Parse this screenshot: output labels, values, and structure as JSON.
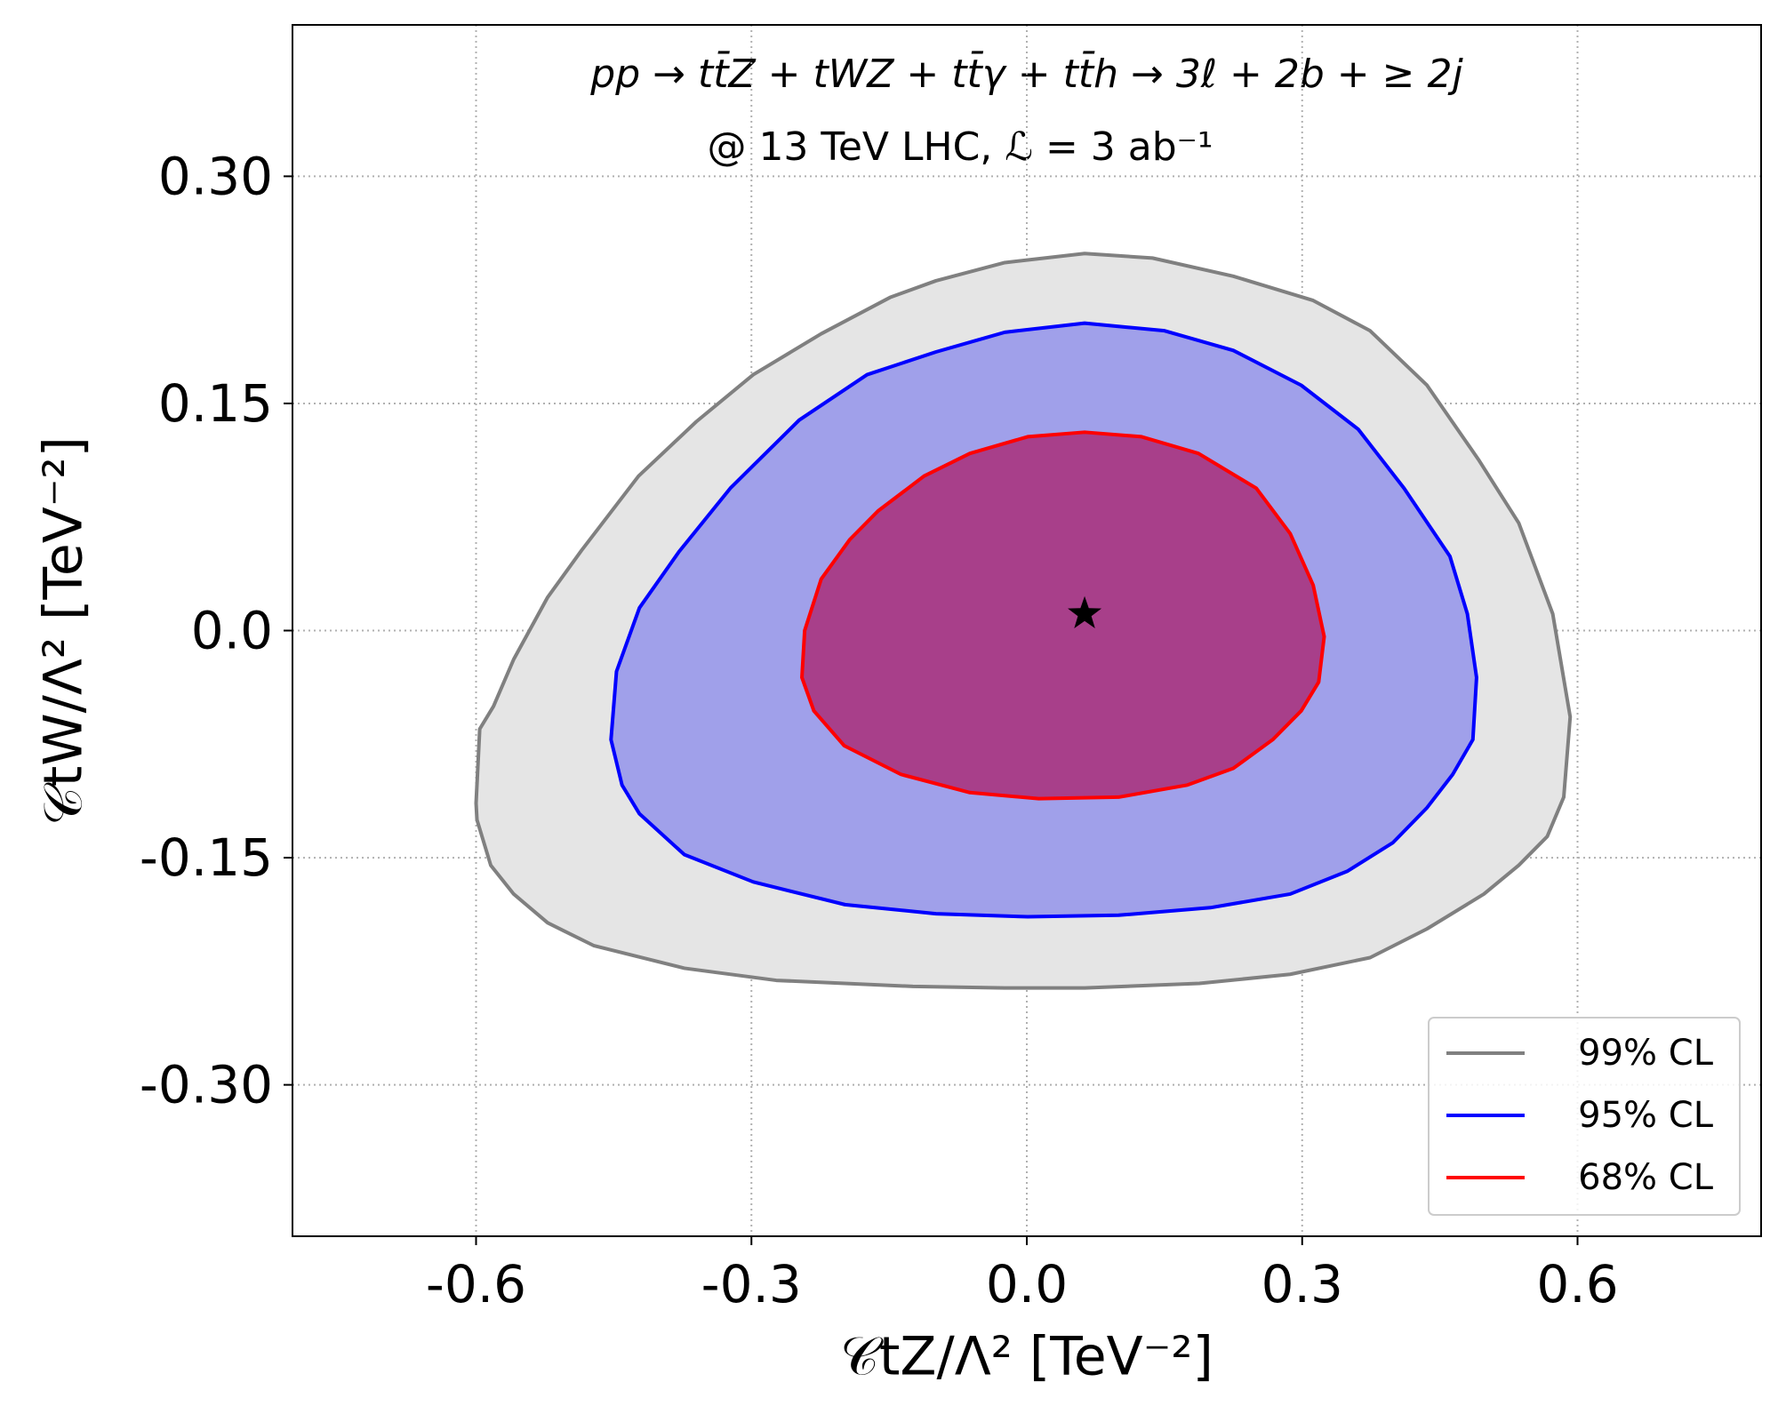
{
  "chart_data": {
    "type": "contour",
    "title": "pp → tt̄Z + tWZ + tt̄γ + tt̄h → 3ℓ + 2b + ≥ 2j",
    "subtitle": "@ 13 TeV LHC, ℒ = 3 ab⁻¹",
    "x_label": "𝒞tZ/Λ² [TeV⁻²]",
    "y_label": "𝒞tW/Λ² [TeV⁻²]",
    "xlim": [
      -0.8,
      0.8
    ],
    "ylim": [
      -0.4,
      0.4
    ],
    "xticks": [
      -0.6,
      -0.3,
      {
        "value": 0,
        "label": "0.0"
      },
      0.3,
      0.6
    ],
    "yticks": [
      {
        "value": -0.3,
        "label": "-0.30"
      },
      -0.15,
      {
        "value": 0,
        "label": "0.0"
      },
      0.15,
      {
        "value": 0.3,
        "label": "0.30"
      }
    ],
    "grid": true,
    "legend": "lower right",
    "series": [
      {
        "name": "99% CL",
        "color": "#808080",
        "fill": "#e5e5e5",
        "x": [
          -0.6,
          -0.596,
          -0.581,
          -0.559,
          -0.522,
          -0.485,
          -0.423,
          -0.36,
          -0.298,
          -0.224,
          -0.149,
          -0.099,
          -0.024,
          0.063,
          0.137,
          0.225,
          0.312,
          0.374,
          0.436,
          0.492,
          0.536,
          0.573,
          0.592,
          0.585,
          0.567,
          0.536,
          0.498,
          0.436,
          0.374,
          0.287,
          0.188,
          0.063,
          -0.024,
          -0.124,
          -0.273,
          -0.373,
          -0.472,
          -0.522,
          -0.559,
          -0.584,
          -0.599
        ],
        "y": [
          -0.114,
          -0.065,
          -0.05,
          -0.019,
          0.022,
          0.053,
          0.102,
          0.138,
          0.169,
          0.196,
          0.22,
          0.231,
          0.243,
          0.249,
          0.246,
          0.234,
          0.218,
          0.198,
          0.162,
          0.113,
          0.071,
          0.011,
          -0.057,
          -0.11,
          -0.136,
          -0.155,
          -0.174,
          -0.197,
          -0.216,
          -0.227,
          -0.233,
          -0.236,
          -0.236,
          -0.235,
          -0.231,
          -0.223,
          -0.208,
          -0.193,
          -0.174,
          -0.155,
          -0.125
        ]
      },
      {
        "name": "95% CL",
        "color": "#0000ff",
        "fill": "#a0a0ea",
        "x": [
          -0.453,
          -0.447,
          -0.422,
          -0.379,
          -0.323,
          -0.248,
          -0.174,
          -0.099,
          -0.024,
          0.063,
          0.15,
          0.225,
          0.299,
          0.361,
          0.411,
          0.461,
          0.48,
          0.49,
          0.486,
          0.464,
          0.436,
          0.399,
          0.349,
          0.287,
          0.2,
          0.1,
          0.001,
          -0.099,
          -0.198,
          -0.298,
          -0.373,
          -0.422,
          -0.441
        ],
        "y": [
          -0.072,
          -0.027,
          0.015,
          0.052,
          0.094,
          0.139,
          0.169,
          0.184,
          0.197,
          0.203,
          0.198,
          0.185,
          0.162,
          0.133,
          0.094,
          0.049,
          0.011,
          -0.031,
          -0.072,
          -0.095,
          -0.117,
          -0.14,
          -0.159,
          -0.174,
          -0.183,
          -0.188,
          -0.189,
          -0.187,
          -0.181,
          -0.166,
          -0.148,
          -0.121,
          -0.102
        ]
      },
      {
        "name": "68% CL",
        "color": "#ff0000",
        "fill": "#a83f8a",
        "x": [
          -0.245,
          -0.242,
          -0.224,
          -0.193,
          -0.162,
          -0.112,
          -0.062,
          0.001,
          0.063,
          0.125,
          0.187,
          0.25,
          0.287,
          0.312,
          0.324,
          0.318,
          0.299,
          0.268,
          0.225,
          0.175,
          0.1,
          0.013,
          -0.062,
          -0.137,
          -0.199,
          -0.232
        ],
        "y": [
          -0.031,
          0.0,
          0.034,
          0.06,
          0.079,
          0.102,
          0.117,
          0.128,
          0.131,
          0.128,
          0.117,
          0.094,
          0.064,
          0.03,
          -0.004,
          -0.034,
          -0.053,
          -0.072,
          -0.091,
          -0.102,
          -0.11,
          -0.111,
          -0.107,
          -0.095,
          -0.076,
          -0.053
        ]
      }
    ],
    "best_fit": {
      "x": 0.063,
      "y": 0.011
    }
  }
}
